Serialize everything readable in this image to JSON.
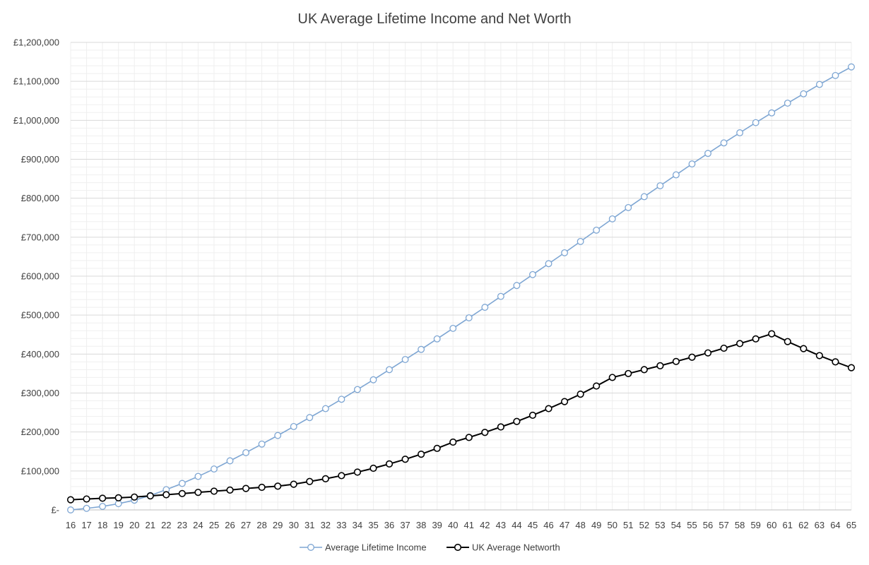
{
  "chart_data": {
    "type": "line",
    "title": "UK Average Lifetime Income and Net Worth",
    "xlabel": "",
    "ylabel": "",
    "x": [
      16,
      17,
      18,
      19,
      20,
      21,
      22,
      23,
      24,
      25,
      26,
      27,
      28,
      29,
      30,
      31,
      32,
      33,
      34,
      35,
      36,
      37,
      38,
      39,
      40,
      41,
      42,
      43,
      44,
      45,
      46,
      47,
      48,
      49,
      50,
      51,
      52,
      53,
      54,
      55,
      56,
      57,
      58,
      59,
      60,
      61,
      62,
      63,
      64,
      65
    ],
    "ylim": [
      0,
      1200000
    ],
    "yticks": [
      {
        "value": 0,
        "label": "£-"
      },
      {
        "value": 100000,
        "label": "£100,000"
      },
      {
        "value": 200000,
        "label": "£200,000"
      },
      {
        "value": 300000,
        "label": "£300,000"
      },
      {
        "value": 400000,
        "label": "£400,000"
      },
      {
        "value": 500000,
        "label": "£500,000"
      },
      {
        "value": 600000,
        "label": "£600,000"
      },
      {
        "value": 700000,
        "label": "£700,000"
      },
      {
        "value": 800000,
        "label": "£800,000"
      },
      {
        "value": 900000,
        "label": "£900,000"
      },
      {
        "value": 1000000,
        "label": "£1,000,000"
      },
      {
        "value": 1100000,
        "label": "£1,100,000"
      },
      {
        "value": 1200000,
        "label": "£1,200,000"
      }
    ],
    "grid": true,
    "legend_position": "bottom",
    "series": [
      {
        "name": "Average Lifetime Income",
        "color": "#7ea6d3",
        "marker_fill": "#ffffff",
        "values": [
          0,
          4000,
          9000,
          16000,
          25000,
          37000,
          52000,
          68000,
          86000,
          105000,
          126000,
          147000,
          169000,
          191000,
          214000,
          237000,
          260000,
          284000,
          309000,
          334000,
          360000,
          386000,
          412000,
          439000,
          466000,
          493000,
          520000,
          548000,
          576000,
          604000,
          632000,
          660000,
          689000,
          718000,
          747000,
          776000,
          804000,
          832000,
          860000,
          888000,
          915000,
          942000,
          968000,
          994000,
          1019000,
          1044000,
          1068000,
          1092000,
          1115000,
          1137000
        ]
      },
      {
        "name": "UK Average Networth",
        "color": "#000000",
        "marker_fill": "#ffffff",
        "values": [
          26000,
          28000,
          30000,
          31000,
          33000,
          36000,
          39000,
          42000,
          45000,
          48000,
          51000,
          55000,
          58000,
          61000,
          66000,
          73000,
          80000,
          88000,
          97000,
          107000,
          118000,
          130000,
          143000,
          158000,
          174000,
          186000,
          199000,
          213000,
          227000,
          243000,
          260000,
          278000,
          297000,
          318000,
          340000,
          350000,
          360000,
          370000,
          381000,
          392000,
          403000,
          415000,
          427000,
          439000,
          452000,
          432000,
          414000,
          396000,
          380000,
          365000
        ]
      }
    ]
  }
}
